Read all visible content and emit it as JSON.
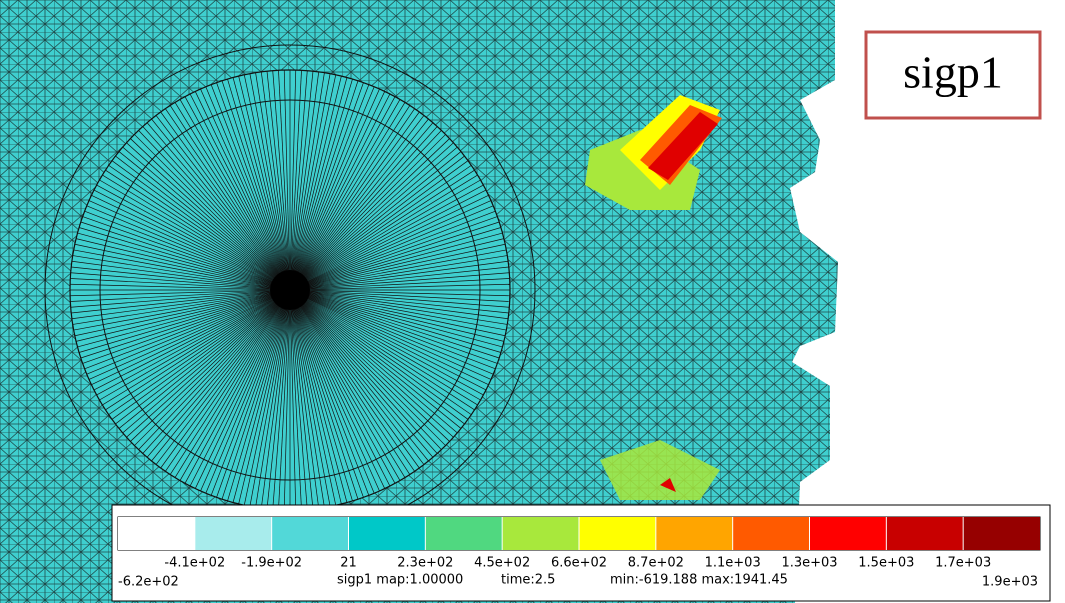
{
  "field_label": "sigp1",
  "legend": {
    "colors": [
      "#ffffff",
      "#a8ecec",
      "#52d8d8",
      "#00c8c8",
      "#50d880",
      "#a8e83c",
      "#ffff00",
      "#ffa500",
      "#ff5a00",
      "#ff0000",
      "#c80000",
      "#960000"
    ],
    "tick_labels": [
      "-4.1e+02",
      "-1.9e+02",
      "21",
      "2.3e+02",
      "4.5e+02",
      "6.6e+02",
      "8.7e+02",
      "1.1e+03",
      "1.3e+03",
      "1.5e+03",
      "1.7e+03"
    ],
    "min_label": "-6.2e+02",
    "max_label": "1.9e+03",
    "map_text": "sigp1 map:1.00000",
    "time_text": "time:2.5",
    "range_text": "min:-619.188 max:1941.45"
  }
}
